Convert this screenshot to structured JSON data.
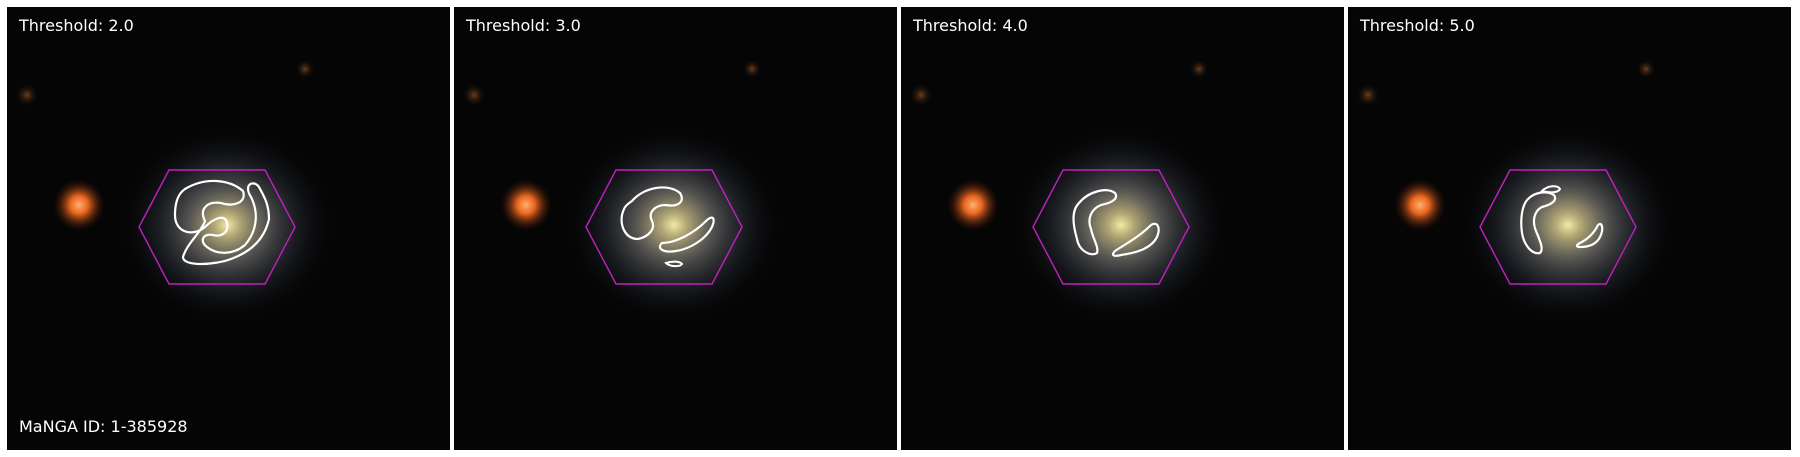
{
  "panels": [
    {
      "label": "Threshold: 2.0"
    },
    {
      "label": "Threshold: 3.0"
    },
    {
      "label": "Threshold: 4.0"
    },
    {
      "label": "Threshold: 5.0"
    }
  ],
  "manga_id_label": "MaNGA ID: 1-385928",
  "colors": {
    "hexagon": "#c020c0",
    "contour": "#ffffff",
    "background": "#050505",
    "star": "#e8641e",
    "galaxy_core": "#efe7a0"
  }
}
